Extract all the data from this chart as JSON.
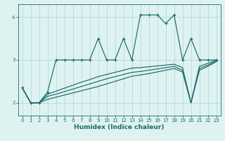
{
  "xlabel": "Humidex (Indice chaleur)",
  "ylabel": "",
  "xlim": [
    -0.5,
    23.5
  ],
  "ylim": [
    1.7,
    4.3
  ],
  "yticks": [
    2,
    3,
    4
  ],
  "xticks": [
    0,
    1,
    2,
    3,
    4,
    5,
    6,
    7,
    8,
    9,
    10,
    11,
    12,
    13,
    14,
    15,
    16,
    17,
    18,
    19,
    20,
    21,
    22,
    23
  ],
  "background_color": "#dff2f2",
  "grid_color": "#aad4d4",
  "line_color": "#1a6b6b",
  "series1": [
    2.35,
    2.0,
    2.0,
    2.25,
    3.0,
    3.0,
    3.0,
    3.0,
    3.0,
    3.5,
    3.0,
    3.0,
    3.5,
    3.0,
    4.05,
    4.05,
    4.05,
    3.85,
    4.05,
    3.0,
    3.5,
    3.0,
    3.0,
    3.0
  ],
  "series2": [
    2.35,
    2.0,
    2.0,
    2.2,
    2.27,
    2.34,
    2.41,
    2.48,
    2.54,
    2.61,
    2.66,
    2.71,
    2.76,
    2.81,
    2.82,
    2.84,
    2.86,
    2.88,
    2.9,
    2.82,
    2.0,
    2.85,
    2.92,
    3.0
  ],
  "series3": [
    2.35,
    2.0,
    2.0,
    2.15,
    2.2,
    2.26,
    2.32,
    2.38,
    2.44,
    2.5,
    2.56,
    2.61,
    2.66,
    2.71,
    2.73,
    2.76,
    2.79,
    2.82,
    2.85,
    2.76,
    2.0,
    2.8,
    2.88,
    2.98
  ],
  "series4": [
    2.35,
    2.0,
    2.0,
    2.08,
    2.13,
    2.18,
    2.23,
    2.28,
    2.33,
    2.38,
    2.44,
    2.5,
    2.56,
    2.62,
    2.65,
    2.68,
    2.72,
    2.76,
    2.8,
    2.72,
    2.0,
    2.76,
    2.85,
    2.96
  ]
}
